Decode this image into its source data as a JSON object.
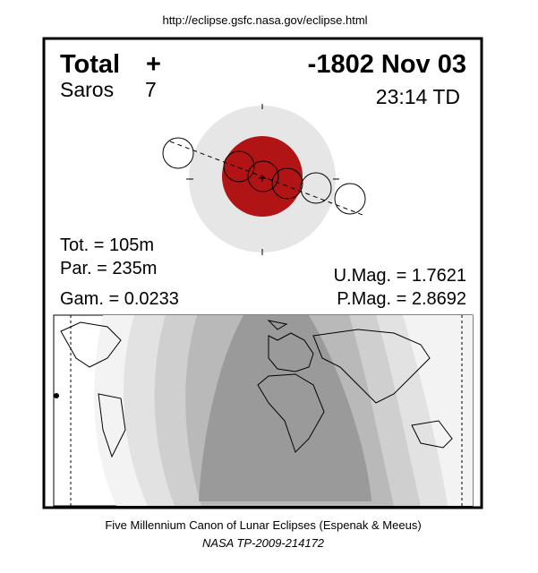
{
  "header": {
    "url": "http://eclipse.gsfc.nasa.gov/eclipse.html",
    "eclipse_type": "Total",
    "type_symbol": "+",
    "date": "-1802 Nov 03",
    "saros_label": "Saros",
    "saros_number": "7",
    "time": "23:14 TD"
  },
  "parameters": {
    "total_duration": "Tot. = 105m",
    "partial_duration": "Par. = 235m",
    "gamma": "Gam. = 0.0233",
    "umbral_magnitude": "U.Mag. = 1.7621",
    "penumbral_magnitude": "P.Mag. = 2.8692"
  },
  "footer": {
    "title": "Five Millennium Canon of Lunar Eclipses (Espenak & Meeus)",
    "reference": "NASA TP-2009-214172"
  }
}
